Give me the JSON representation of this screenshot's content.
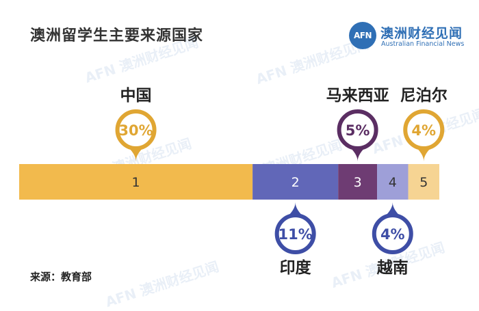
{
  "title": "澳洲留学生主要来源国家",
  "logo": {
    "mark": "AFN",
    "cn": "澳洲财经见闻",
    "en": "Australian Financial News"
  },
  "source": "来源：教育部",
  "colors": {
    "china": "#F2BA4D",
    "india": "#6167B8",
    "malaysia": "#6E3C73",
    "vietnam": "#9E9FD8",
    "nepal": "#F6D493",
    "gold_marker": "#E0A633",
    "blue_marker": "#3E4EA6",
    "purple_marker": "#5B2E63"
  },
  "chart_data": {
    "type": "bar",
    "orientation": "stacked-horizontal",
    "categories": [
      "中国",
      "印度",
      "马来西亚",
      "越南",
      "尼泊尔"
    ],
    "index_labels": [
      "1",
      "2",
      "3",
      "4",
      "5"
    ],
    "values": [
      30,
      11,
      5,
      4,
      4
    ],
    "value_labels": [
      "30%",
      "11%",
      "5%",
      "4%",
      "4%"
    ],
    "marker_side": [
      "top",
      "bottom",
      "top",
      "bottom",
      "top"
    ]
  }
}
